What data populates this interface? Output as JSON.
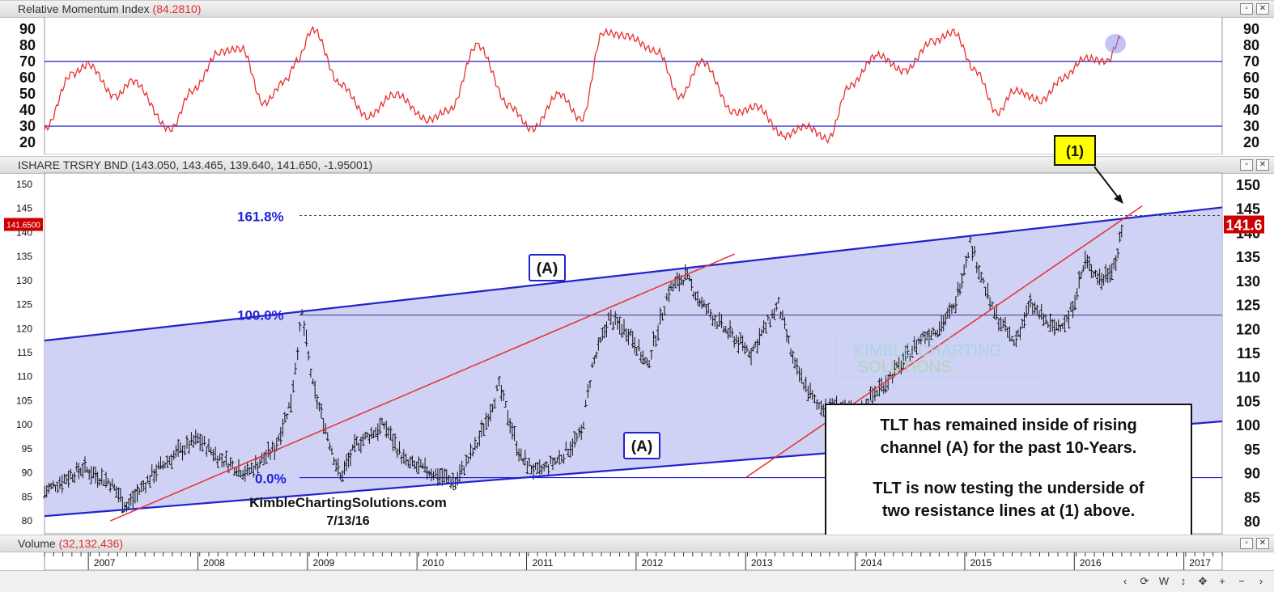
{
  "rmi_panel": {
    "title": "Relative Momentum Index",
    "value": "(84.2810)"
  },
  "price_panel": {
    "title": "ISHARE TRSRY BND",
    "values": "(143.050, 143.465, 139.640, 141.650, -1.95001)"
  },
  "volume_panel": {
    "title": "Volume",
    "value": "(32,132,436)"
  },
  "price_tags": {
    "left": "141.6500",
    "right": "141.6"
  },
  "annotations": {
    "fib_1618": "161.8%",
    "fib_100": "100.0%",
    "fib_0": "0.0%",
    "channel_label_top": "(A)",
    "channel_label_bottom": "(A)",
    "callout": "(1)",
    "watermark_line1": "KIMBLE CHARTING",
    "watermark_line2": "SOLUTIONS",
    "source": "KimbleChartingSolutions.com",
    "date": "7/13/16",
    "note_lines": [
      "TLT has remained inside of rising",
      "channel (A) for the past 10-Years.",
      "",
      "TLT is now testing the underside of",
      "two resistance lines at (1) above."
    ]
  },
  "window_buttons": [
    "restore",
    "close"
  ],
  "toolbar_icons": [
    "scroll-left-icon",
    "settings-icon",
    "weekly-icon",
    "resize-icon",
    "move-icon",
    "zoom-in-icon",
    "zoom-out-icon",
    "scroll-right-icon"
  ],
  "toolbar_labels": [
    "‹",
    "⟳",
    "W",
    "↕",
    "✥",
    "+",
    "−",
    "›"
  ],
  "colors": {
    "channel_fill": "#c7c9f3",
    "channel_line": "#2222cc",
    "trend_line": "#e83030",
    "rmi_line": "#e83030",
    "guide_line": "#1a1acc",
    "callout_fill": "#ffff00"
  },
  "chart_data": [
    {
      "type": "line",
      "title": "Relative Momentum Index",
      "ylim": [
        15,
        95
      ],
      "y_ticks": [
        20,
        30,
        40,
        50,
        60,
        70,
        80,
        90
      ],
      "reference_lines": [
        30,
        70
      ],
      "last_value": 84.281,
      "x": [
        2006.6,
        2006.85,
        2007.0,
        2007.25,
        2007.4,
        2007.75,
        2007.95,
        2008.2,
        2008.4,
        2008.6,
        2008.8,
        2008.9,
        2009.05,
        2009.3,
        2009.55,
        2009.8,
        2010.1,
        2010.3,
        2010.55,
        2010.85,
        2011.05,
        2011.3,
        2011.5,
        2011.7,
        2011.9,
        2012.2,
        2012.4,
        2012.6,
        2012.9,
        2013.1,
        2013.35,
        2013.55,
        2013.75,
        2013.95,
        2014.2,
        2014.45,
        2014.7,
        2014.9,
        2015.1,
        2015.3,
        2015.45,
        2015.7,
        2015.9,
        2016.1,
        2016.3,
        2016.42
      ],
      "values": [
        28,
        62,
        68,
        48,
        58,
        28,
        52,
        76,
        78,
        44,
        58,
        70,
        90,
        56,
        36,
        50,
        34,
        40,
        80,
        42,
        28,
        50,
        34,
        88,
        86,
        76,
        48,
        70,
        38,
        42,
        24,
        30,
        22,
        55,
        74,
        64,
        82,
        88,
        64,
        38,
        52,
        46,
        60,
        72,
        70,
        84
      ]
    },
    {
      "type": "ohlc",
      "title": "ISHARE TRSRY BND",
      "ylim": [
        78,
        152
      ],
      "y_ticks": [
        80,
        85,
        90,
        95,
        100,
        105,
        110,
        115,
        120,
        125,
        130,
        135,
        140,
        145,
        150
      ],
      "x_ticks": [
        "2007",
        "2008",
        "2009",
        "2010",
        "2011",
        "2012",
        "2013",
        "2014",
        "2015",
        "2016",
        "2017"
      ],
      "last": {
        "open": 143.05,
        "high": 143.465,
        "low": 139.64,
        "close": 141.65,
        "change": -1.95001
      },
      "price_path": {
        "x": [
          2006.6,
          2006.8,
          2006.95,
          2007.2,
          2007.35,
          2007.6,
          2007.8,
          2008.0,
          2008.2,
          2008.45,
          2008.7,
          2008.85,
          2008.95,
          2009.05,
          2009.3,
          2009.45,
          2009.7,
          2009.9,
          2010.15,
          2010.35,
          2010.55,
          2010.75,
          2010.95,
          2011.1,
          2011.3,
          2011.5,
          2011.6,
          2011.75,
          2011.95,
          2012.1,
          2012.3,
          2012.45,
          2012.6,
          2012.8,
          2013.05,
          2013.3,
          2013.45,
          2013.65,
          2013.85,
          2014.0,
          2014.2,
          2014.4,
          2014.6,
          2014.75,
          2014.9,
          2015.05,
          2015.25,
          2015.45,
          2015.6,
          2015.8,
          2015.95,
          2016.1,
          2016.25,
          2016.38,
          2016.45
        ],
        "values": [
          86,
          89,
          91,
          88,
          83,
          90,
          94,
          97,
          93,
          90,
          95,
          105,
          123,
          108,
          89,
          96,
          100,
          92,
          90,
          88,
          96,
          108,
          93,
          90,
          93,
          98,
          112,
          122,
          119,
          112,
          128,
          131,
          125,
          120,
          115,
          125,
          112,
          104,
          104,
          102,
          107,
          112,
          118,
          120,
          124,
          138,
          124,
          117,
          125,
          120,
          122,
          134,
          130,
          134,
          142
        ]
      },
      "fib_levels": [
        {
          "label": "0.0%",
          "value": 89
        },
        {
          "label": "100.0%",
          "value": 122.8
        },
        {
          "label": "161.8%",
          "value": 143.5
        }
      ],
      "channel": {
        "upper": {
          "start": [
            2006.6,
            117.5
          ],
          "end": [
            2017.35,
            145.2
          ]
        },
        "lower": {
          "start": [
            2006.6,
            81.0
          ],
          "end": [
            2017.35,
            100.7
          ]
        }
      },
      "trend_lines": [
        {
          "start": [
            2007.2,
            80
          ],
          "end": [
            2012.9,
            135.5
          ]
        },
        {
          "start": [
            2013.0,
            89
          ],
          "end": [
            2016.62,
            145.5
          ]
        }
      ]
    }
  ]
}
